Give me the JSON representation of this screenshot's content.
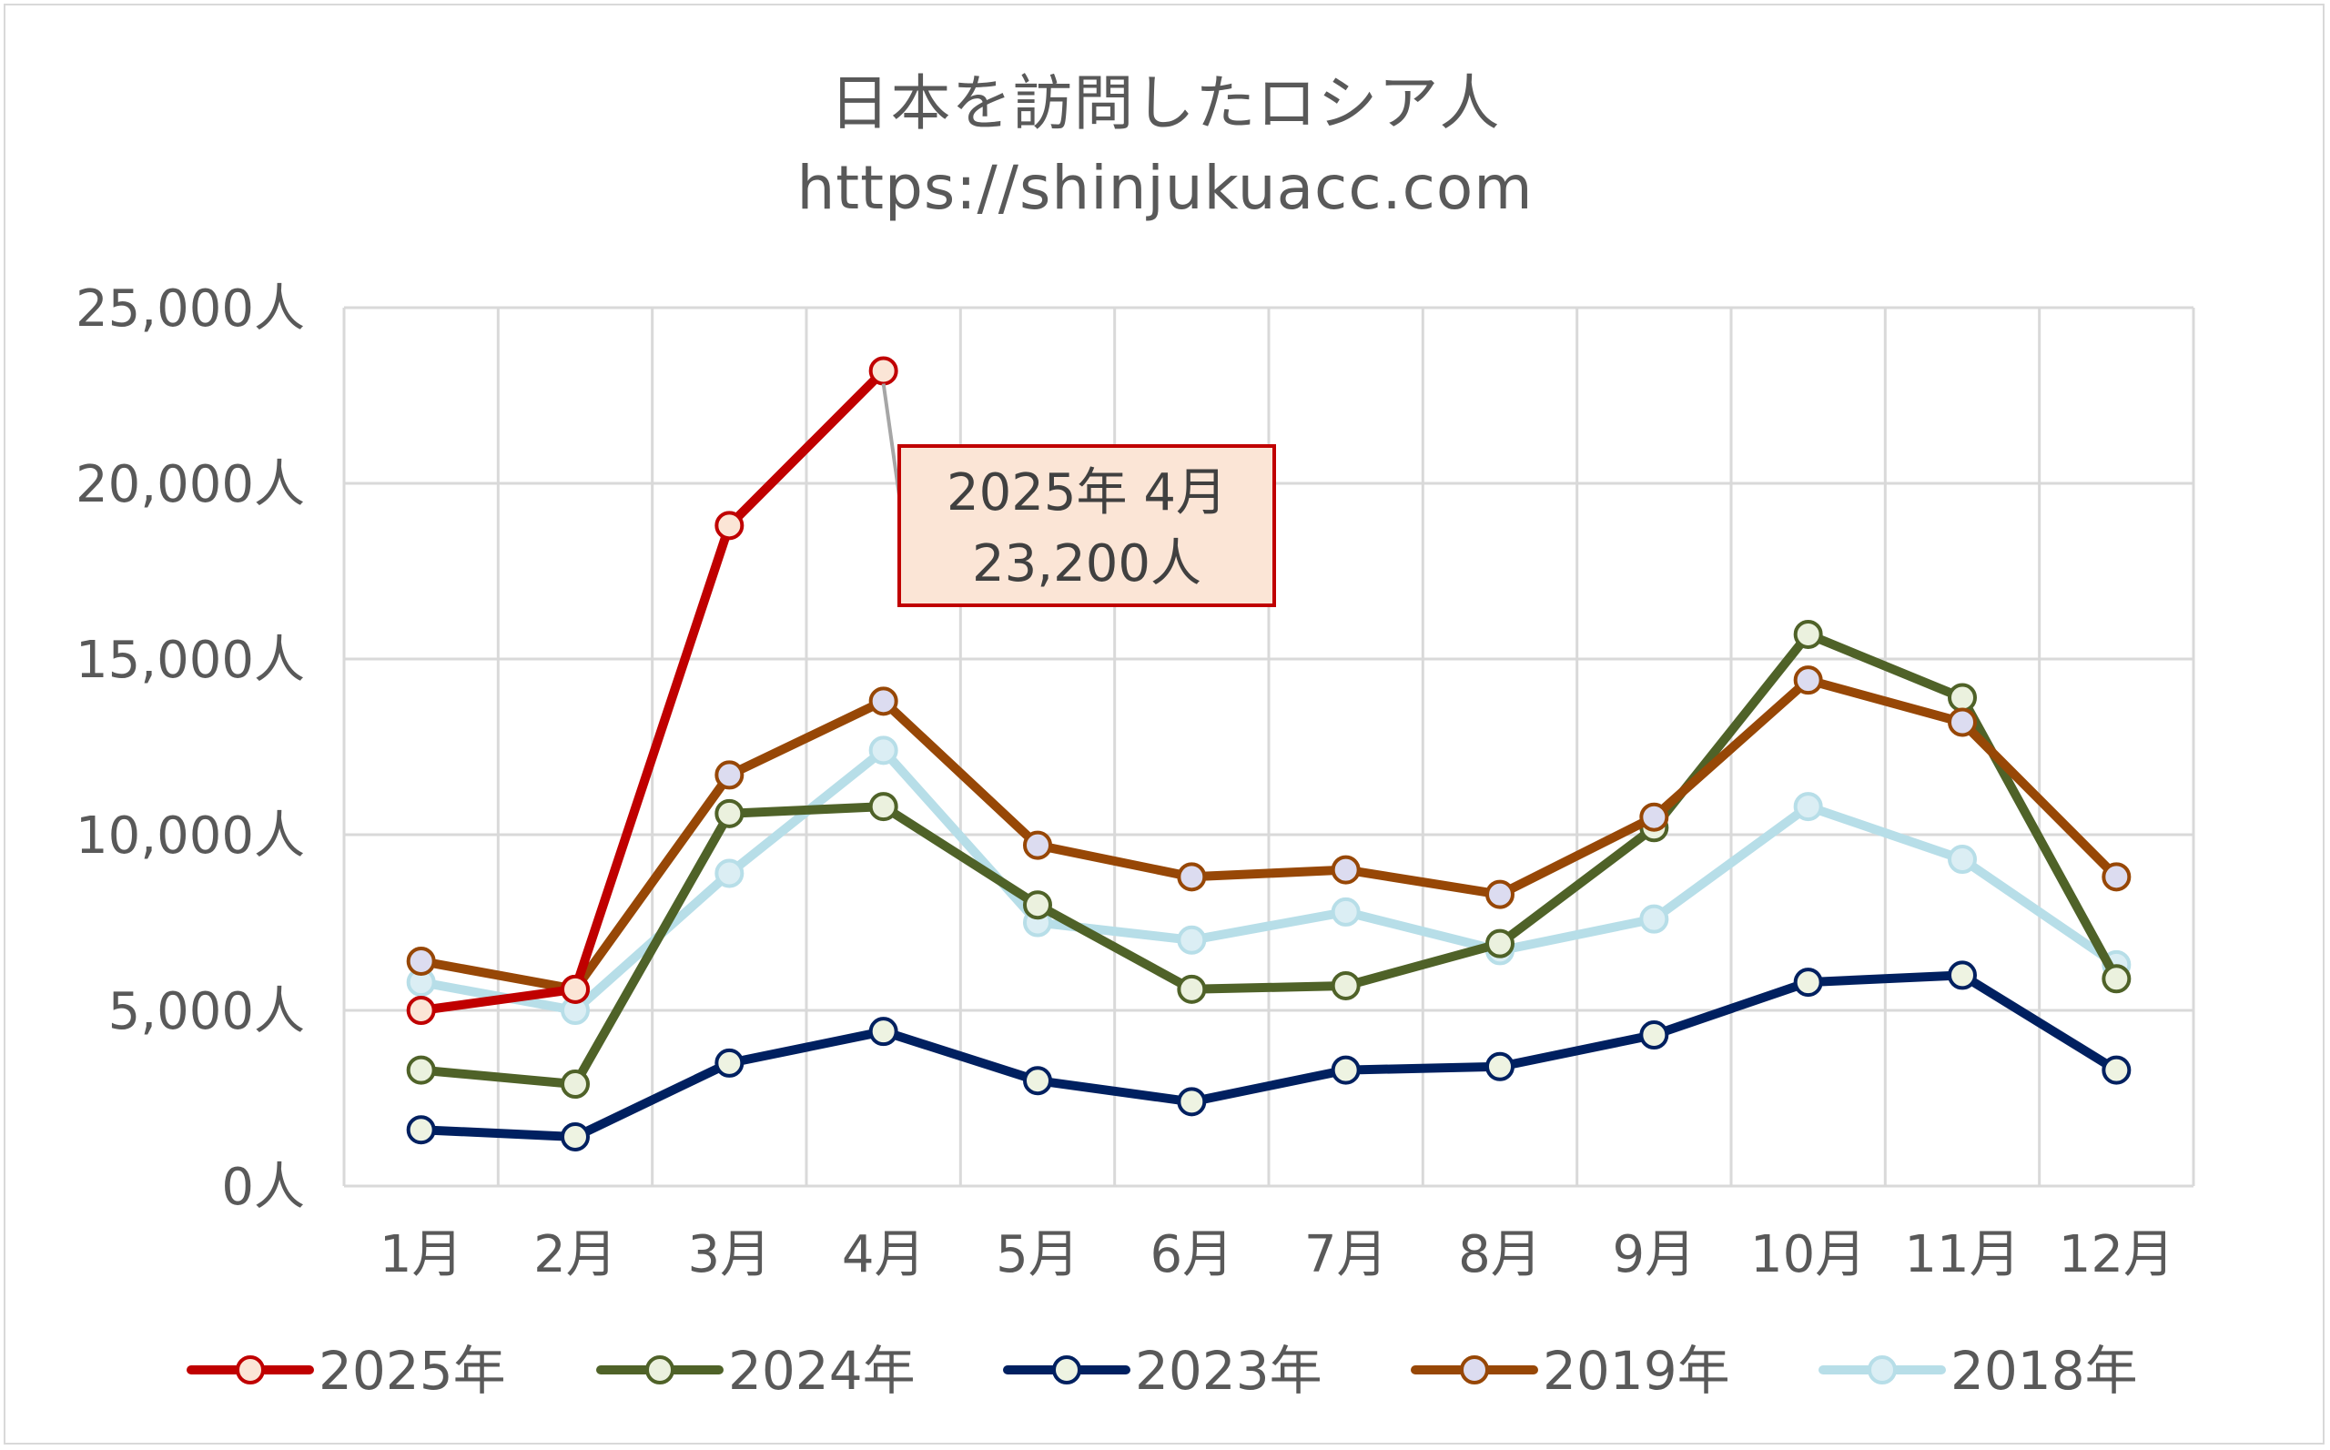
{
  "chart_data": {
    "type": "line",
    "title": "日本を訪問したロシア人",
    "subtitle": "https://shinjukuacc.com",
    "categories": [
      "1月",
      "2月",
      "3月",
      "4月",
      "5月",
      "6月",
      "7月",
      "8月",
      "9月",
      "10月",
      "11月",
      "12月"
    ],
    "y_tick_labels": [
      "0人",
      "5,000人",
      "10,000人",
      "15,000人",
      "20,000人",
      "25,000人"
    ],
    "ylim": [
      0,
      25000
    ],
    "y_step": 5000,
    "grid": true,
    "legend_position": "bottom",
    "series": [
      {
        "name": "2025年",
        "color": "#c00000",
        "marker_fill": "#fbe5d6",
        "values": [
          5000,
          5600,
          18800,
          23200,
          null,
          null,
          null,
          null,
          null,
          null,
          null,
          null
        ]
      },
      {
        "name": "2024年",
        "color": "#4f6228",
        "marker_fill": "#ebf1de",
        "values": [
          3300,
          2900,
          10600,
          10800,
          8000,
          5600,
          5700,
          6900,
          10200,
          15700,
          13900,
          5900
        ]
      },
      {
        "name": "2023年",
        "color": "#002060",
        "marker_fill": "#eef3e2",
        "values": [
          1600,
          1400,
          3500,
          4400,
          3000,
          2400,
          3300,
          3400,
          4300,
          5800,
          6000,
          3300
        ]
      },
      {
        "name": "2019年",
        "color": "#974706",
        "marker_fill": "#dcdcf0",
        "values": [
          6400,
          5600,
          11700,
          13800,
          9700,
          8800,
          9000,
          8300,
          10500,
          14400,
          13200,
          8800
        ]
      },
      {
        "name": "2018年",
        "color": "#b7dee8",
        "marker_fill": "#dbeef4",
        "values": [
          5800,
          5000,
          8900,
          12400,
          7500,
          7000,
          7800,
          6700,
          7600,
          10800,
          9300,
          6300
        ]
      }
    ],
    "annotation": {
      "line1": "2025年 4月",
      "line2": "23,200人",
      "series": "2025年",
      "category": "4月"
    }
  }
}
